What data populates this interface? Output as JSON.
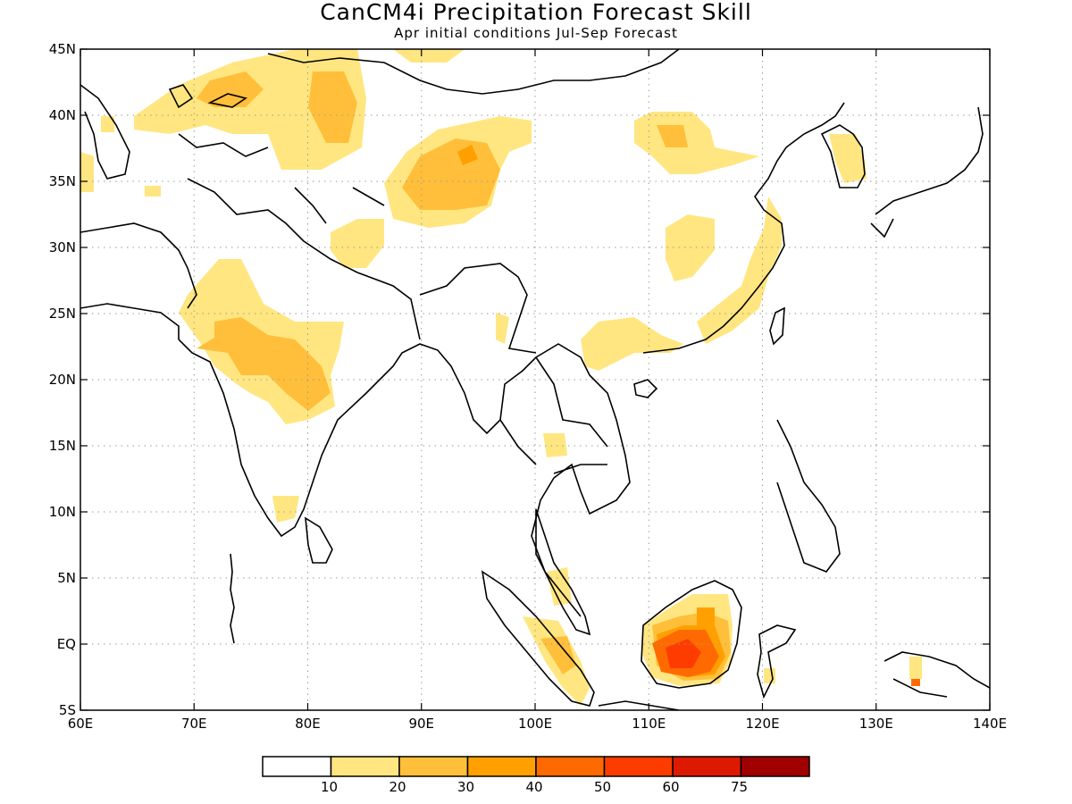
{
  "title": "CanCM4i Precipitation Forecast Skill",
  "subtitle": "Apr initial conditions  Jul-Sep Forecast",
  "colors": {
    "c0": "#ffffff",
    "c10": "#ffe680",
    "c20": "#ffbf3a",
    "c30": "#ffa000",
    "c40": "#ff6a00",
    "c50": "#ff3c00",
    "c60": "#dd1a00",
    "c75": "#a00000",
    "coast": "#000000",
    "grid": "#9a9a9a"
  },
  "map": {
    "lon_range": [
      60,
      140
    ],
    "lat_range": [
      -5,
      45
    ],
    "x_tick_labels": [
      "60E",
      "70E",
      "80E",
      "90E",
      "100E",
      "110E",
      "120E",
      "130E",
      "140E"
    ],
    "y_tick_labels": [
      "5S",
      "EQ",
      "5N",
      "10N",
      "15N",
      "20N",
      "25N",
      "30N",
      "35N",
      "40N",
      "45N"
    ],
    "grid": "dotted"
  },
  "colorbar": {
    "labels": [
      "10",
      "20",
      "30",
      "40",
      "50",
      "60",
      "75"
    ]
  }
}
